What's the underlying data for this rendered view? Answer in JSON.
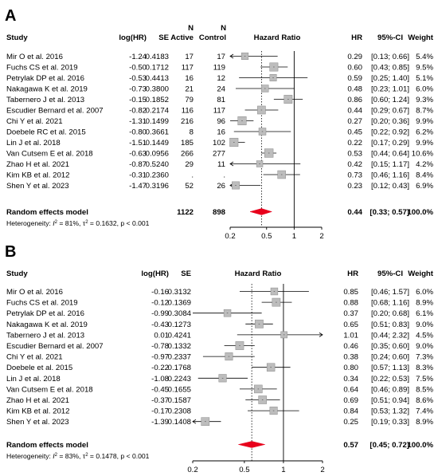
{
  "chart_data": [
    {
      "type": "forest",
      "panel_label": "A",
      "headers": {
        "study": "Study",
        "loghr": "log(HR)",
        "se": "SE",
        "n_active_top": "N",
        "n_active": "Active",
        "n_control_top": "N",
        "n_control": "Control",
        "plot": "Hazard Ratio",
        "hr": "HR",
        "ci": "95%-CI",
        "weight": "Weight"
      },
      "studies": [
        {
          "study": "Mir O et al. 2016",
          "loghr": "-1.24",
          "se": "0.4183",
          "n_active": "17",
          "n_control": "17",
          "hr": 0.29,
          "lo": 0.13,
          "hi": 0.66,
          "hr_text": "0.29",
          "ci_text": "[0.13; 0.66]",
          "weight": "5.4%"
        },
        {
          "study": "Fuchs CS et al. 2019",
          "loghr": "-0.50",
          "se": "0.1712",
          "n_active": "117",
          "n_control": "119",
          "hr": 0.6,
          "lo": 0.43,
          "hi": 0.85,
          "hr_text": "0.60",
          "ci_text": "[0.43; 0.85]",
          "weight": "9.5%"
        },
        {
          "study": "Petrylak DP et al. 2016",
          "loghr": "-0.53",
          "se": "0.4413",
          "n_active": "16",
          "n_control": "12",
          "hr": 0.59,
          "lo": 0.25,
          "hi": 1.4,
          "hr_text": "0.59",
          "ci_text": "[0.25; 1.40]",
          "weight": "5.1%"
        },
        {
          "study": "Nakagawa K et al. 2019",
          "loghr": "-0.73",
          "se": "0.3800",
          "n_active": "21",
          "n_control": "24",
          "hr": 0.48,
          "lo": 0.23,
          "hi": 1.01,
          "hr_text": "0.48",
          "ci_text": "[0.23; 1.01]",
          "weight": "6.0%"
        },
        {
          "study": "Tabernero J et al. 2013",
          "loghr": "-0.15",
          "se": "0.1852",
          "n_active": "79",
          "n_control": "81",
          "hr": 0.86,
          "lo": 0.6,
          "hi": 1.24,
          "hr_text": "0.86",
          "ci_text": "[0.60; 1.24]",
          "weight": "9.3%"
        },
        {
          "study": "Escudier Bernard et al. 2007",
          "loghr": "-0.82",
          "se": "0.2174",
          "n_active": "116",
          "n_control": "117",
          "hr": 0.44,
          "lo": 0.29,
          "hi": 0.67,
          "hr_text": "0.44",
          "ci_text": "[0.29; 0.67]",
          "weight": "8.7%"
        },
        {
          "study": "Chi Y et al. 2021",
          "loghr": "-1.31",
          "se": "0.1499",
          "n_active": "216",
          "n_control": "96",
          "hr": 0.27,
          "lo": 0.2,
          "hi": 0.36,
          "hr_text": "0.27",
          "ci_text": "[0.20; 0.36]",
          "weight": "9.9%"
        },
        {
          "study": "Doebele RC et al. 2015",
          "loghr": "-0.80",
          "se": "0.3661",
          "n_active": "8",
          "n_control": "16",
          "hr": 0.45,
          "lo": 0.22,
          "hi": 0.92,
          "hr_text": "0.45",
          "ci_text": "[0.22; 0.92]",
          "weight": "6.2%"
        },
        {
          "study": "Lin J et al. 2018",
          "loghr": "-1.51",
          "se": "0.1449",
          "n_active": "185",
          "n_control": "102",
          "hr": 0.22,
          "lo": 0.17,
          "hi": 0.29,
          "hr_text": "0.22",
          "ci_text": "[0.17; 0.29]",
          "weight": "9.9%"
        },
        {
          "study": "Van Cutsem E et al. 2018",
          "loghr": "-0.63",
          "se": "0.0956",
          "n_active": "266",
          "n_control": "277",
          "hr": 0.53,
          "lo": 0.44,
          "hi": 0.64,
          "hr_text": "0.53",
          "ci_text": "[0.44; 0.64]",
          "weight": "10.6%"
        },
        {
          "study": "Zhao H et al. 2021",
          "loghr": "-0.87",
          "se": "0.5240",
          "n_active": "29",
          "n_control": "11",
          "hr": 0.42,
          "lo": 0.15,
          "hi": 1.17,
          "hr_text": "0.42",
          "ci_text": "[0.15; 1.17]",
          "weight": "4.2%"
        },
        {
          "study": "Kim KB et al. 2012",
          "loghr": "-0.31",
          "se": "0.2360",
          "n_active": ".",
          "n_control": ".",
          "hr": 0.73,
          "lo": 0.46,
          "hi": 1.16,
          "hr_text": "0.73",
          "ci_text": "[0.46; 1.16]",
          "weight": "8.4%"
        },
        {
          "study": "Shen Y et al. 2023",
          "loghr": "-1.47",
          "se": "0.3196",
          "n_active": "52",
          "n_control": "26",
          "hr": 0.23,
          "lo": 0.12,
          "hi": 0.43,
          "hr_text": "0.23",
          "ci_text": "[0.12; 0.43]",
          "weight": "6.9%"
        }
      ],
      "pooled": {
        "label": "Random effects model",
        "n_active": "1122",
        "n_control": "898",
        "hr": 0.44,
        "lo": 0.33,
        "hi": 0.57,
        "hr_text": "0.44",
        "ci_text": "[0.33; 0.57]",
        "weight": "100.0%"
      },
      "heterogeneity": {
        "prefix": "Heterogeneity: ",
        "i2_symbol": "I",
        "sup": "2",
        "text": " = 81%, τ",
        "tau_sup": "2",
        "rest": " = 0.1632, p < 0.001"
      },
      "axis": {
        "ticks": [
          0.2,
          0.5,
          1,
          2
        ],
        "tick_labels": [
          "0.2",
          "0.5",
          "1",
          "2"
        ],
        "scale": "log",
        "xlim": [
          0.2,
          2
        ]
      }
    },
    {
      "type": "forest",
      "panel_label": "B",
      "headers": {
        "study": "Study",
        "loghr": "log(HR)",
        "se": "SE",
        "plot": "Hazard Ratio",
        "hr": "HR",
        "ci": "95%-CI",
        "weight": "Weight"
      },
      "studies": [
        {
          "study": "Mir O et al. 2016",
          "loghr": "-0.16",
          "se": "0.3132",
          "hr": 0.85,
          "lo": 0.46,
          "hi": 1.57,
          "hr_text": "0.85",
          "ci_text": "[0.46; 1.57]",
          "weight": "6.0%"
        },
        {
          "study": "Fuchs CS et al. 2019",
          "loghr": "-0.12",
          "se": "0.1369",
          "hr": 0.88,
          "lo": 0.68,
          "hi": 1.16,
          "hr_text": "0.88",
          "ci_text": "[0.68; 1.16]",
          "weight": "8.9%"
        },
        {
          "study": "Petrylak DP et al. 2016",
          "loghr": "-0.99",
          "se": "0.3084",
          "hr": 0.37,
          "lo": 0.2,
          "hi": 0.68,
          "hr_text": "0.37",
          "ci_text": "[0.20; 0.68]",
          "weight": "6.1%"
        },
        {
          "study": "Nakagawa K et al. 2019",
          "loghr": "-0.43",
          "se": "0.1273",
          "hr": 0.65,
          "lo": 0.51,
          "hi": 0.83,
          "hr_text": "0.65",
          "ci_text": "[0.51; 0.83]",
          "weight": "9.0%"
        },
        {
          "study": "Tabernero J et al. 2013",
          "loghr": "0.01",
          "se": "0.4241",
          "hr": 1.01,
          "lo": 0.44,
          "hi": 2.32,
          "hr_text": "1.01",
          "ci_text": "[0.44; 2.32]",
          "weight": "4.5%"
        },
        {
          "study": "Escudier Bernard et al. 2007",
          "loghr": "-0.78",
          "se": "0.1332",
          "hr": 0.46,
          "lo": 0.35,
          "hi": 0.6,
          "hr_text": "0.46",
          "ci_text": "[0.35; 0.60]",
          "weight": "9.0%"
        },
        {
          "study": "Chi Y et al. 2021",
          "loghr": "-0.97",
          "se": "0.2337",
          "hr": 0.38,
          "lo": 0.24,
          "hi": 0.6,
          "hr_text": "0.38",
          "ci_text": "[0.24; 0.60]",
          "weight": "7.3%"
        },
        {
          "study": "Doebele et al. 2015",
          "loghr": "-0.22",
          "se": "0.1768",
          "hr": 0.8,
          "lo": 0.57,
          "hi": 1.13,
          "hr_text": "0.80",
          "ci_text": "[0.57; 1.13]",
          "weight": "8.3%"
        },
        {
          "study": "Lin J et al. 2018",
          "loghr": "-1.08",
          "se": "0.2243",
          "hr": 0.34,
          "lo": 0.22,
          "hi": 0.53,
          "hr_text": "0.34",
          "ci_text": "[0.22; 0.53]",
          "weight": "7.5%"
        },
        {
          "study": "Van Cutsem E et al. 2018",
          "loghr": "-0.45",
          "se": "0.1655",
          "hr": 0.64,
          "lo": 0.46,
          "hi": 0.89,
          "hr_text": "0.64",
          "ci_text": "[0.46; 0.89]",
          "weight": "8.5%"
        },
        {
          "study": "Zhao H et al. 2021",
          "loghr": "-0.37",
          "se": "0.1587",
          "hr": 0.69,
          "lo": 0.51,
          "hi": 0.94,
          "hr_text": "0.69",
          "ci_text": "[0.51; 0.94]",
          "weight": "8.6%"
        },
        {
          "study": "Kim KB et al. 2012",
          "loghr": "-0.17",
          "se": "0.2308",
          "hr": 0.84,
          "lo": 0.53,
          "hi": 1.32,
          "hr_text": "0.84",
          "ci_text": "[0.53; 1.32]",
          "weight": "7.4%"
        },
        {
          "study": "Shen Y et al. 2023",
          "loghr": "-1.39",
          "se": "0.1408",
          "hr": 0.25,
          "lo": 0.19,
          "hi": 0.33,
          "hr_text": "0.25",
          "ci_text": "[0.19; 0.33]",
          "weight": "8.9%"
        }
      ],
      "pooled": {
        "label": "Random effects model",
        "hr": 0.57,
        "lo": 0.45,
        "hi": 0.72,
        "hr_text": "0.57",
        "ci_text": "[0.45; 0.72]",
        "weight": "100.0%"
      },
      "heterogeneity": {
        "prefix": "Heterogeneity: ",
        "i2_symbol": "I",
        "sup": "2",
        "text": " = 83%, τ",
        "tau_sup": "2",
        "rest": " = 0.1478, p < 0.001"
      },
      "axis": {
        "ticks": [
          0.2,
          0.5,
          1,
          2
        ],
        "tick_labels": [
          "0.2",
          "0.5",
          "1",
          "2"
        ],
        "scale": "log",
        "xlim": [
          0.2,
          2
        ]
      }
    }
  ],
  "colors": {
    "diamond": "#e8001c",
    "square_fill": "#bdbdbd",
    "square_stroke": "#8a8a8a",
    "line": "#000000"
  },
  "icons": {
    "truncated_ci": "arrow-left-icon"
  }
}
